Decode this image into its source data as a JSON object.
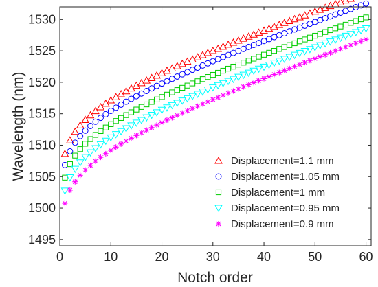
{
  "chart_data": {
    "type": "scatter",
    "title": "",
    "xlabel": "Notch order",
    "ylabel": "Wavelength (nm)",
    "xlim": [
      0,
      61
    ],
    "ylim": [
      1494,
      1532
    ],
    "xticks": [
      0,
      10,
      20,
      30,
      40,
      50,
      60
    ],
    "yticks": [
      1495,
      1500,
      1505,
      1510,
      1515,
      1520,
      1525,
      1530
    ],
    "grid": false,
    "legend_position": "bottom-right",
    "series": [
      {
        "name": "Displacement=1.1 mm",
        "marker": "triangle-up",
        "color": "#ff0000",
        "curve": {
          "a": 1508.4,
          "b": 2.75,
          "c": 0.242
        },
        "n": 60
      },
      {
        "name": "Displacement=1.05 mm",
        "marker": "circle",
        "color": "#0000ff",
        "curve": {
          "a": 1506.6,
          "b": 2.8,
          "c": 0.241
        },
        "n": 60
      },
      {
        "name": "Displacement=1 mm",
        "marker": "square",
        "color": "#00cc00",
        "curve": {
          "a": 1504.6,
          "b": 2.75,
          "c": 0.241
        },
        "n": 60
      },
      {
        "name": "Displacement=0.95 mm",
        "marker": "triangle-down",
        "color": "#00ffff",
        "curve": {
          "a": 1502.5,
          "b": 2.7,
          "c": 0.25
        },
        "n": 60
      },
      {
        "name": "Displacement=0.9 mm",
        "marker": "star",
        "color": "#ff00ff",
        "curve": {
          "a": 1500.5,
          "b": 2.65,
          "c": 0.258
        },
        "n": 60
      }
    ]
  }
}
